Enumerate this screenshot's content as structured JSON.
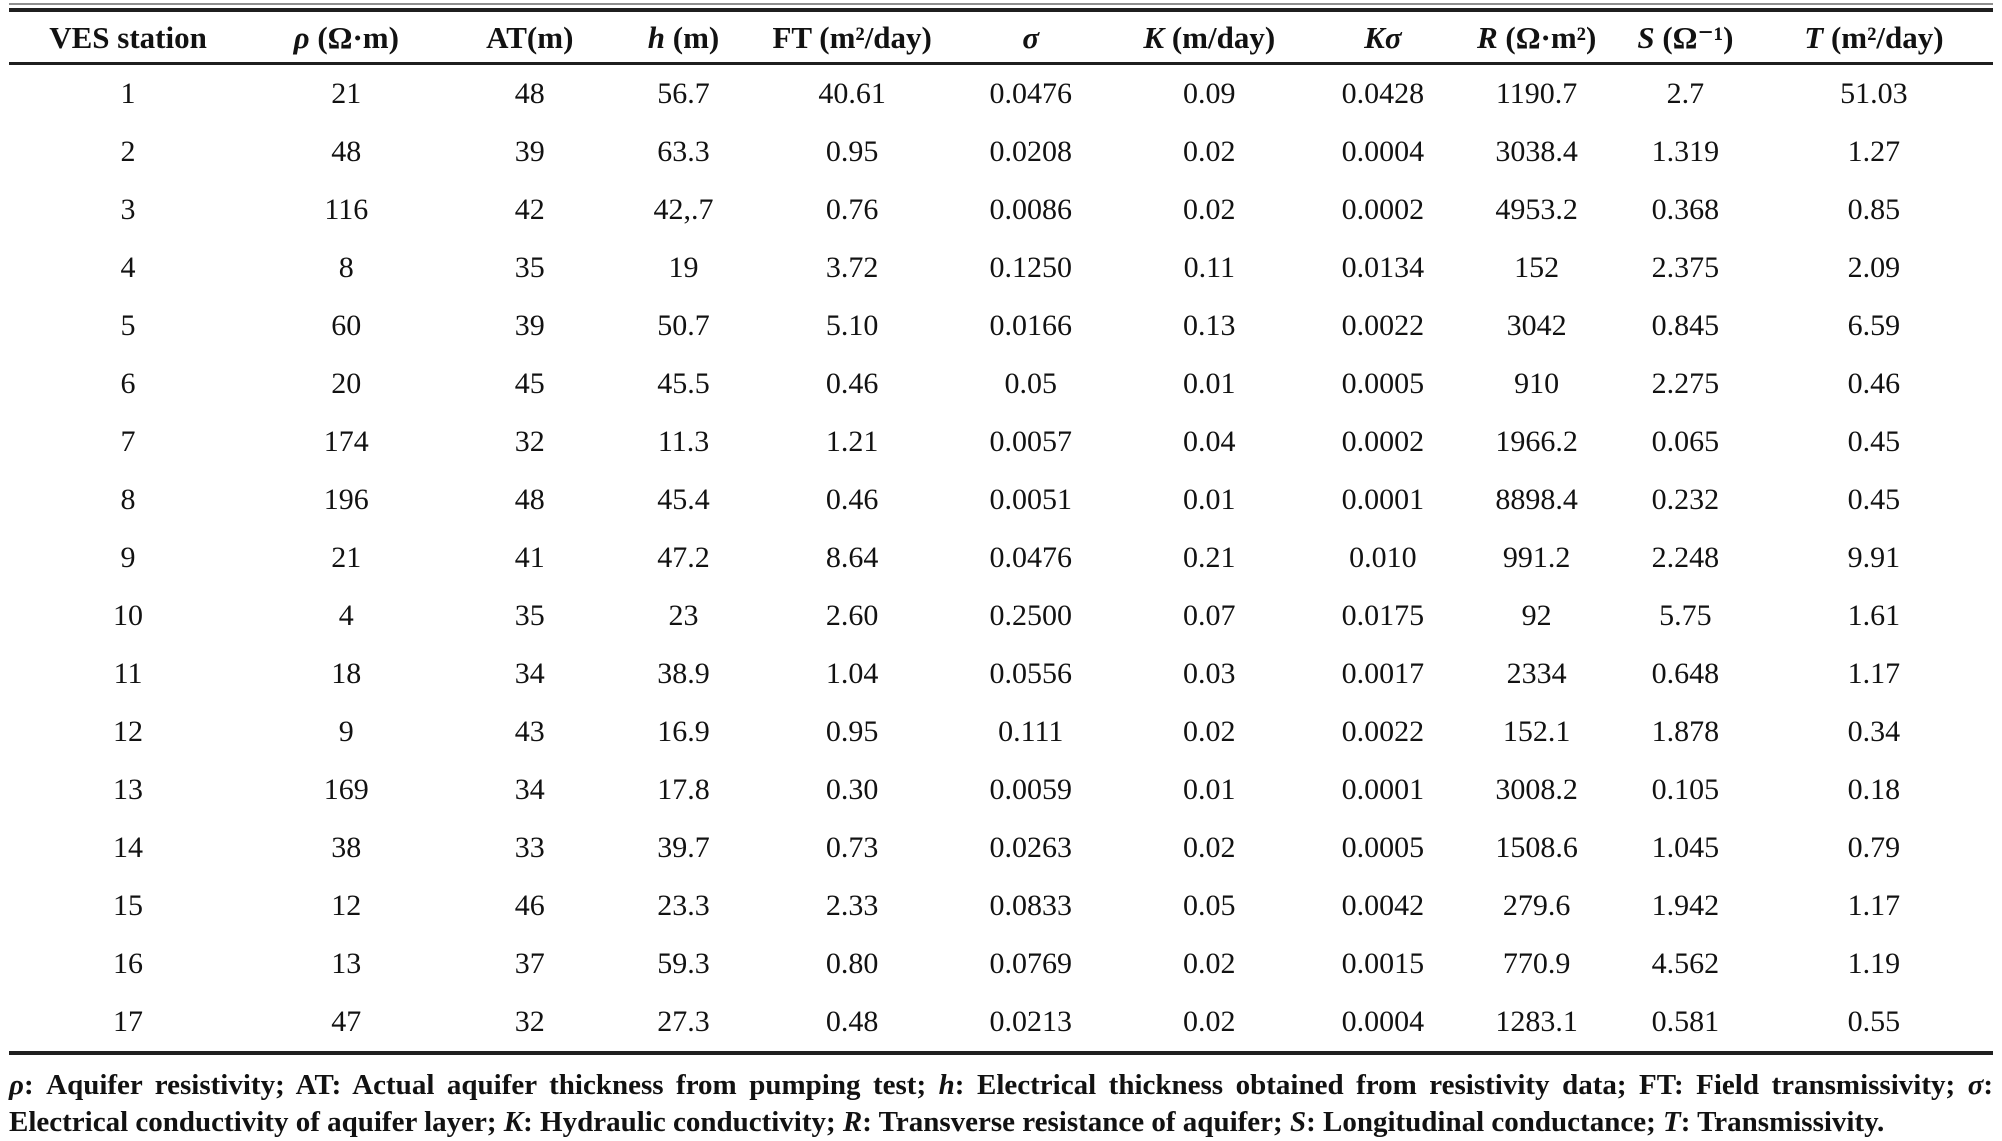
{
  "page": {
    "background": "#ffffff",
    "text_color": "#121212",
    "rule_color": "#1f1f1f"
  },
  "table": {
    "columns": [
      {
        "sym": "VES station",
        "italic": false,
        "unit": ""
      },
      {
        "sym": "ρ",
        "italic": true,
        "unit": "(Ω·m)"
      },
      {
        "sym": "AT(m)",
        "italic": false,
        "unit": ""
      },
      {
        "sym": "h",
        "italic": true,
        "unit": "(m)"
      },
      {
        "sym": "FT",
        "italic": false,
        "unit": "(m²/day)"
      },
      {
        "sym": "σ",
        "italic": true,
        "unit": ""
      },
      {
        "sym": "K",
        "italic": true,
        "unit": "(m/day)"
      },
      {
        "sym": "Kσ",
        "italic": true,
        "unit": ""
      },
      {
        "sym": "R",
        "italic": true,
        "unit": "(Ω·m²)"
      },
      {
        "sym": "S",
        "italic": true,
        "unit": "(Ω⁻¹)"
      },
      {
        "sym": "T",
        "italic": true,
        "unit": "(m²/day)"
      }
    ],
    "col_widths_pct": [
      12,
      10,
      8.5,
      7,
      10,
      8,
      10,
      7.5,
      8,
      7,
      12
    ],
    "rows": [
      [
        "1",
        "21",
        "48",
        "56.7",
        "40.61",
        "0.0476",
        "0.09",
        "0.0428",
        "1190.7",
        "2.7",
        "51.03"
      ],
      [
        "2",
        "48",
        "39",
        "63.3",
        "0.95",
        "0.0208",
        "0.02",
        "0.0004",
        "3038.4",
        "1.319",
        "1.27"
      ],
      [
        "3",
        "116",
        "42",
        "42,.7",
        "0.76",
        "0.0086",
        "0.02",
        "0.0002",
        "4953.2",
        "0.368",
        "0.85"
      ],
      [
        "4",
        "8",
        "35",
        "19",
        "3.72",
        "0.1250",
        "0.11",
        "0.0134",
        "152",
        "2.375",
        "2.09"
      ],
      [
        "5",
        "60",
        "39",
        "50.7",
        "5.10",
        "0.0166",
        "0.13",
        "0.0022",
        "3042",
        "0.845",
        "6.59"
      ],
      [
        "6",
        "20",
        "45",
        "45.5",
        "0.46",
        "0.05",
        "0.01",
        "0.0005",
        "910",
        "2.275",
        "0.46"
      ],
      [
        "7",
        "174",
        "32",
        "11.3",
        "1.21",
        "0.0057",
        "0.04",
        "0.0002",
        "1966.2",
        "0.065",
        "0.45"
      ],
      [
        "8",
        "196",
        "48",
        "45.4",
        "0.46",
        "0.0051",
        "0.01",
        "0.0001",
        "8898.4",
        "0.232",
        "0.45"
      ],
      [
        "9",
        "21",
        "41",
        "47.2",
        "8.64",
        "0.0476",
        "0.21",
        "0.010",
        "991.2",
        "2.248",
        "9.91"
      ],
      [
        "10",
        "4",
        "35",
        "23",
        "2.60",
        "0.2500",
        "0.07",
        "0.0175",
        "92",
        "5.75",
        "1.61"
      ],
      [
        "11",
        "18",
        "34",
        "38.9",
        "1.04",
        "0.0556",
        "0.03",
        "0.0017",
        "2334",
        "0.648",
        "1.17"
      ],
      [
        "12",
        "9",
        "43",
        "16.9",
        "0.95",
        "0.111",
        "0.02",
        "0.0022",
        "152.1",
        "1.878",
        "0.34"
      ],
      [
        "13",
        "169",
        "34",
        "17.8",
        "0.30",
        "0.0059",
        "0.01",
        "0.0001",
        "3008.2",
        "0.105",
        "0.18"
      ],
      [
        "14",
        "38",
        "33",
        "39.7",
        "0.73",
        "0.0263",
        "0.02",
        "0.0005",
        "1508.6",
        "1.045",
        "0.79"
      ],
      [
        "15",
        "12",
        "46",
        "23.3",
        "2.33",
        "0.0833",
        "0.05",
        "0.0042",
        "279.6",
        "1.942",
        "1.17"
      ],
      [
        "16",
        "13",
        "37",
        "59.3",
        "0.80",
        "0.0769",
        "0.02",
        "0.0015",
        "770.9",
        "4.562",
        "1.19"
      ],
      [
        "17",
        "47",
        "32",
        "27.3",
        "0.48",
        "0.0213",
        "0.02",
        "0.0004",
        "1283.1",
        "0.581",
        "0.55"
      ]
    ],
    "footnote_segments": [
      {
        "t": "ρ",
        "i": true
      },
      {
        "t": ": Aquifer resistivity; AT: Actual aquifer thickness from pumping test; ",
        "i": false
      },
      {
        "t": "h",
        "i": true
      },
      {
        "t": ": Electrical thickness obtained from resistivity data; FT: Field transmissivity; ",
        "i": false
      },
      {
        "t": "σ",
        "i": true
      },
      {
        "t": ": Electrical conductivity of aquifer layer; ",
        "i": false
      },
      {
        "t": "K",
        "i": true
      },
      {
        "t": ": Hydraulic conductivity; ",
        "i": false
      },
      {
        "t": "R",
        "i": true
      },
      {
        "t": ": Transverse resistance of aquifer; ",
        "i": false
      },
      {
        "t": "S",
        "i": true
      },
      {
        "t": ": Longitudinal conductance; ",
        "i": false
      },
      {
        "t": "T",
        "i": true
      },
      {
        "t": ": Transmissivity.",
        "i": false
      }
    ]
  }
}
